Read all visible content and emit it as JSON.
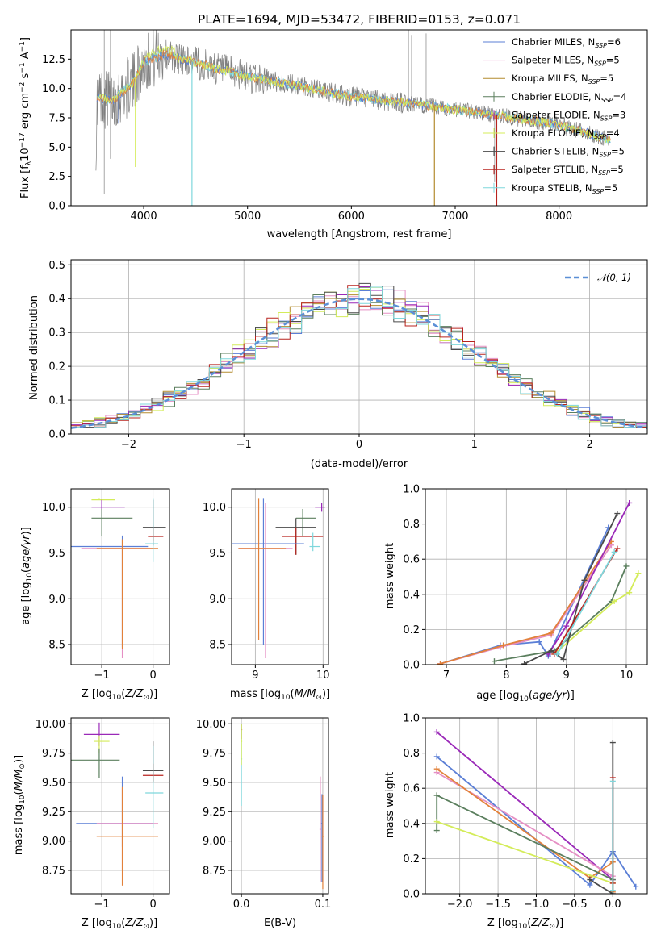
{
  "colors": {
    "chabrier_miles": "#5b7fd6",
    "salpeter_miles": "#e58fc4",
    "kroupa_miles": "#b38b2e",
    "chabrier_elodie": "#5b7f5e",
    "salpeter_elodie": "#9a29b8",
    "kroupa_elodie": "#d4ec5a",
    "chabrier_stelib": "#4a4a4a",
    "salpeter_stelib": "#b8231e",
    "kroupa_stelib": "#7fd7dc",
    "data": "#808080",
    "orange": "#e2813a",
    "normal": "#5b8fd6"
  },
  "chart_data": [
    {
      "id": "spectrum",
      "type": "line",
      "title": "PLATE=1694, MJD=53472, FIBERID=0153, z=0.071",
      "xlabel": "wavelength [Angstrom, rest frame]",
      "ylabel": "Flux [f_λ10^-17 erg cm^-2 s^-1 A^-1]",
      "xlim": [
        3300,
        8850
      ],
      "ylim": [
        0,
        15
      ],
      "xticks": [
        "4000",
        "5000",
        "6000",
        "7000",
        "8000"
      ],
      "yticks": [
        "0.0",
        "2.5",
        "5.0",
        "7.5",
        "10.0",
        "12.5"
      ],
      "legend": [
        "Chabrier MILES, N_SSP=6",
        "Salpeter MILES, N_SSP=5",
        "Kroupa MILES, N_SSP=5",
        "Chabrier ELODIE, N_SSP=4",
        "Salpeter ELODIE, N_SSP=3",
        "Kroupa ELODIE, N_SSP=4",
        "Chabrier STELIB, N_SSP=5",
        "Salpeter STELIB, N_SSP=5",
        "Kroupa STELIB, N_SSP=5"
      ],
      "legend_position": "upper-right",
      "continuum": [
        [
          3550,
          9.2
        ],
        [
          3700,
          9.0
        ],
        [
          3900,
          10.5
        ],
        [
          4000,
          12.3
        ],
        [
          4200,
          12.9
        ],
        [
          4500,
          12.2
        ],
        [
          5000,
          11.0
        ],
        [
          5500,
          10.2
        ],
        [
          6000,
          9.3
        ],
        [
          6500,
          8.8
        ],
        [
          7000,
          8.2
        ],
        [
          7500,
          7.6
        ],
        [
          8000,
          6.9
        ],
        [
          8500,
          5.6
        ]
      ]
    },
    {
      "id": "residuals",
      "type": "line",
      "xlabel": "(data-model)/error",
      "ylabel": "Normed distribution",
      "xlim": [
        -2.5,
        2.5
      ],
      "ylim": [
        0,
        0.515
      ],
      "xticks": [
        "−2",
        "−1",
        "0",
        "1",
        "2"
      ],
      "yticks": [
        "0.0",
        "0.1",
        "0.2",
        "0.3",
        "0.4",
        "0.5"
      ],
      "legend": [
        "𝒩(0, 1)"
      ],
      "legend_position": "upper-right"
    },
    {
      "id": "age-vs-Z",
      "type": "scatter",
      "xlabel": "Z [log10(Z/Z⊙)]",
      "ylabel": "age  [log10(age/yr)]",
      "xlim": [
        -1.6,
        0.32
      ],
      "ylim": [
        8.28,
        10.2
      ],
      "xticks": [
        "−1",
        "0"
      ],
      "yticks": [
        "8.5",
        "9.0",
        "9.5",
        "10.0"
      ]
    },
    {
      "id": "age-vs-mass",
      "type": "scatter",
      "xlabel": "mass [log10(M/M⊙)]",
      "ylabel": "",
      "xlim": [
        8.65,
        10.08
      ],
      "ylim": [
        8.28,
        10.2
      ],
      "xticks": [
        "9",
        "10"
      ],
      "yticks": [
        "8.5",
        "9.0",
        "9.5",
        "10.0"
      ]
    },
    {
      "id": "mass-weight-vs-age",
      "type": "line",
      "xlabel": "age  [log10(age/yr)]",
      "ylabel": "mass weight",
      "xlim": [
        6.65,
        10.35
      ],
      "ylim": [
        0,
        1
      ],
      "xticks": [
        "7",
        "8",
        "9",
        "10"
      ],
      "yticks": [
        "0.0",
        "0.2",
        "0.4",
        "0.6",
        "0.8",
        "1.0"
      ]
    },
    {
      "id": "mass-vs-Z",
      "type": "scatter",
      "xlabel": "Z [log10(Z/Z⊙)]",
      "ylabel": "mass [log10(M/M⊙)]",
      "xlim": [
        -1.6,
        0.32
      ],
      "ylim": [
        8.55,
        10.05
      ],
      "xticks": [
        "−1",
        "0"
      ],
      "yticks": [
        "8.75",
        "9.00",
        "9.25",
        "9.50",
        "9.75",
        "10.00"
      ]
    },
    {
      "id": "mass-vs-ebv",
      "type": "scatter",
      "xlabel": "E(B-V)",
      "ylabel": "",
      "xlim": [
        -0.012,
        0.107
      ],
      "ylim": [
        8.55,
        10.05
      ],
      "xticks": [
        "0.0",
        "0.1"
      ],
      "yticks": [
        "8.75",
        "9.00",
        "9.25",
        "9.50",
        "9.75",
        "10.00"
      ]
    },
    {
      "id": "mass-weight-vs-Z",
      "type": "line",
      "xlabel": "Z [log10(Z/Z⊙)]",
      "ylabel": "mass weight",
      "xlim": [
        -2.45,
        0.45
      ],
      "ylim": [
        0,
        1
      ],
      "xticks": [
        "−2.0",
        "−1.5",
        "−1.0",
        "−0.5",
        "0.0"
      ],
      "yticks": [
        "0.0",
        "0.2",
        "0.4",
        "0.6",
        "0.8",
        "1.0"
      ]
    }
  ]
}
